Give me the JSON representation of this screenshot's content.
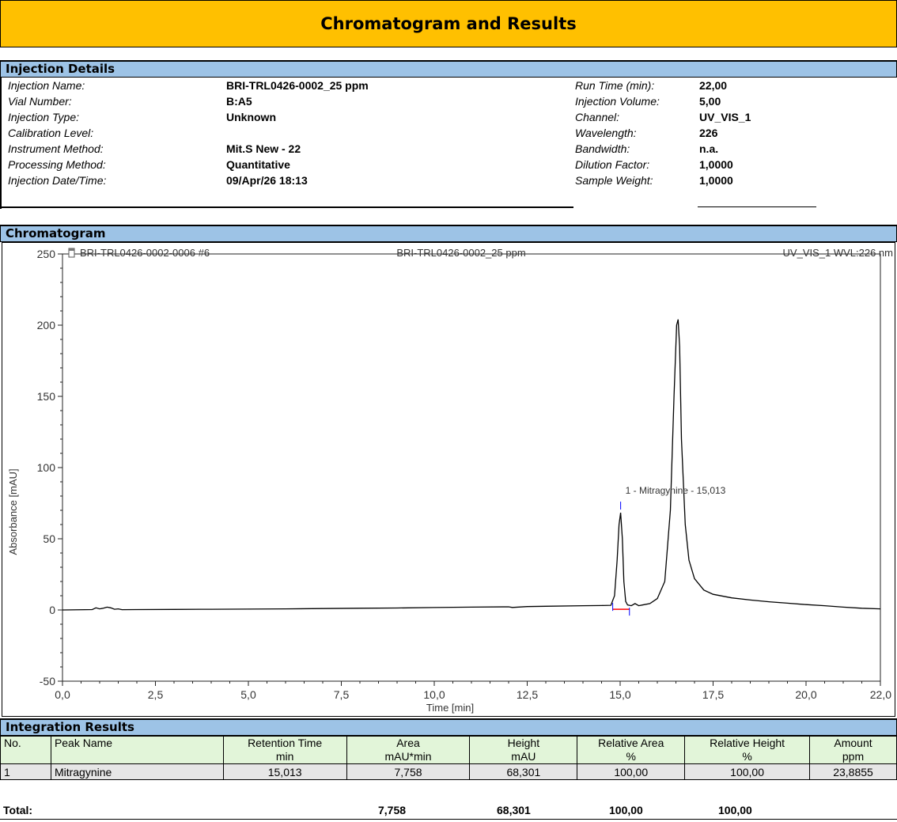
{
  "title": "Chromatogram and Results",
  "injection_details": {
    "header": "Injection Details",
    "left": [
      {
        "label": "Injection Name:",
        "value": "BRI-TRL0426-0002_25 ppm"
      },
      {
        "label": "Vial Number:",
        "value": "B:A5"
      },
      {
        "label": "Injection Type:",
        "value": "Unknown"
      },
      {
        "label": "Calibration Level:",
        "value": ""
      },
      {
        "label": "Instrument Method:",
        "value": "Mit.S New - 22"
      },
      {
        "label": "Processing Method:",
        "value": "Quantitative"
      },
      {
        "label": "Injection Date/Time:",
        "value": "09/Apr/26 18:13"
      }
    ],
    "right": [
      {
        "label": "Run Time (min):",
        "value": "22,00"
      },
      {
        "label": "Injection Volume:",
        "value": "5,00"
      },
      {
        "label": "Channel:",
        "value": "UV_VIS_1"
      },
      {
        "label": "Wavelength:",
        "value": "226"
      },
      {
        "label": "Bandwidth:",
        "value": "n.a."
      },
      {
        "label": "Dilution Factor:",
        "value": "1,0000"
      },
      {
        "label": "Sample Weight:",
        "value": "1,0000"
      }
    ]
  },
  "chromatogram": {
    "header": "Chromatogram",
    "top_left_label": "BRI-TRL0426-0002-0006 #6",
    "top_center_label": "BRI-TRL0426-0002_25 ppm",
    "top_right_label": "UV_VIS_1 WVL:226 nm"
  },
  "chart_data": {
    "type": "line",
    "xlabel": "Time [min]",
    "ylabel": "Absorbance [mAU]",
    "xlim": [
      0,
      22
    ],
    "ylim": [
      -50,
      250
    ],
    "xticks": [
      0,
      2.5,
      5,
      7.5,
      10,
      12.5,
      15,
      17.5,
      20,
      22
    ],
    "xtick_labels": [
      "0,0",
      "2,5",
      "5,0",
      "7,5",
      "10,0",
      "12,5",
      "15,0",
      "17,5",
      "20,0",
      "22,0"
    ],
    "yticks": [
      -50,
      0,
      50,
      100,
      150,
      200,
      250
    ],
    "ytick_labels": [
      "-50",
      "0",
      "50",
      "100",
      "150",
      "200",
      "250"
    ],
    "series_color": "#000000",
    "baseline_color": "#ff0000",
    "marker_color": "#0000ff",
    "series": [
      {
        "x": [
          0.0,
          0.8,
          0.9,
          1.0,
          1.1,
          1.2,
          1.3,
          1.4,
          1.5,
          1.6,
          2.0,
          3.0,
          4.0,
          5.0,
          6.0,
          7.0,
          8.0,
          9.0,
          10.0,
          11.0,
          12.0,
          12.1,
          12.5,
          13.0,
          14.0,
          14.5,
          14.75,
          14.85,
          14.92,
          14.97,
          15.013,
          15.06,
          15.1,
          15.15,
          15.2,
          15.3,
          15.4,
          15.5,
          15.6,
          15.8,
          16.0,
          16.2,
          16.35,
          16.45,
          16.52,
          16.56,
          16.6,
          16.65,
          16.75,
          16.85,
          17.0,
          17.25,
          17.5,
          18.0,
          18.5,
          19.0,
          19.5,
          20.0,
          20.5,
          21.0,
          21.5,
          22.0
        ],
        "y": [
          0.0,
          0.3,
          1.5,
          0.8,
          1.2,
          2.0,
          1.5,
          0.5,
          0.8,
          0.2,
          0.3,
          0.4,
          0.5,
          0.6,
          0.8,
          1.0,
          1.2,
          1.4,
          1.7,
          2.0,
          2.2,
          1.8,
          2.4,
          2.6,
          3.0,
          3.1,
          3.3,
          10.0,
          35.0,
          60.0,
          68.3,
          50.0,
          20.0,
          6.0,
          3.5,
          3.0,
          4.5,
          3.0,
          3.5,
          4.5,
          8.0,
          20.0,
          70.0,
          150.0,
          200.0,
          204.0,
          185.0,
          120.0,
          60.0,
          35.0,
          22.0,
          14.0,
          11.0,
          8.5,
          7.0,
          5.8,
          4.8,
          3.8,
          3.0,
          2.0,
          1.2,
          0.8
        ]
      }
    ],
    "peak_annotation": {
      "x": 15.013,
      "y": 68.3,
      "text": "1 - Mitragynine - 15,013"
    },
    "integration_baseline": {
      "x_start": 14.8,
      "x_end": 15.25,
      "y": 0.5
    }
  },
  "integration": {
    "header": "Integration Results",
    "columns": [
      {
        "line1": "No.",
        "line2": ""
      },
      {
        "line1": "Peak Name",
        "line2": ""
      },
      {
        "line1": "Retention Time",
        "line2": "min"
      },
      {
        "line1": "Area",
        "line2": "mAU*min"
      },
      {
        "line1": "Height",
        "line2": "mAU"
      },
      {
        "line1": "Relative Area",
        "line2": "%"
      },
      {
        "line1": "Relative Height",
        "line2": "%"
      },
      {
        "line1": "Amount",
        "line2": "ppm"
      }
    ],
    "rows": [
      {
        "no": "1",
        "name": "Mitragynine",
        "rt": "15,013",
        "area": "7,758",
        "height": "68,301",
        "rel_area": "100,00",
        "rel_height": "100,00",
        "amount": "23,8855"
      }
    ],
    "total": {
      "label": "Total:",
      "area": "7,758",
      "height": "68,301",
      "rel_area": "100,00",
      "rel_height": "100,00"
    }
  }
}
